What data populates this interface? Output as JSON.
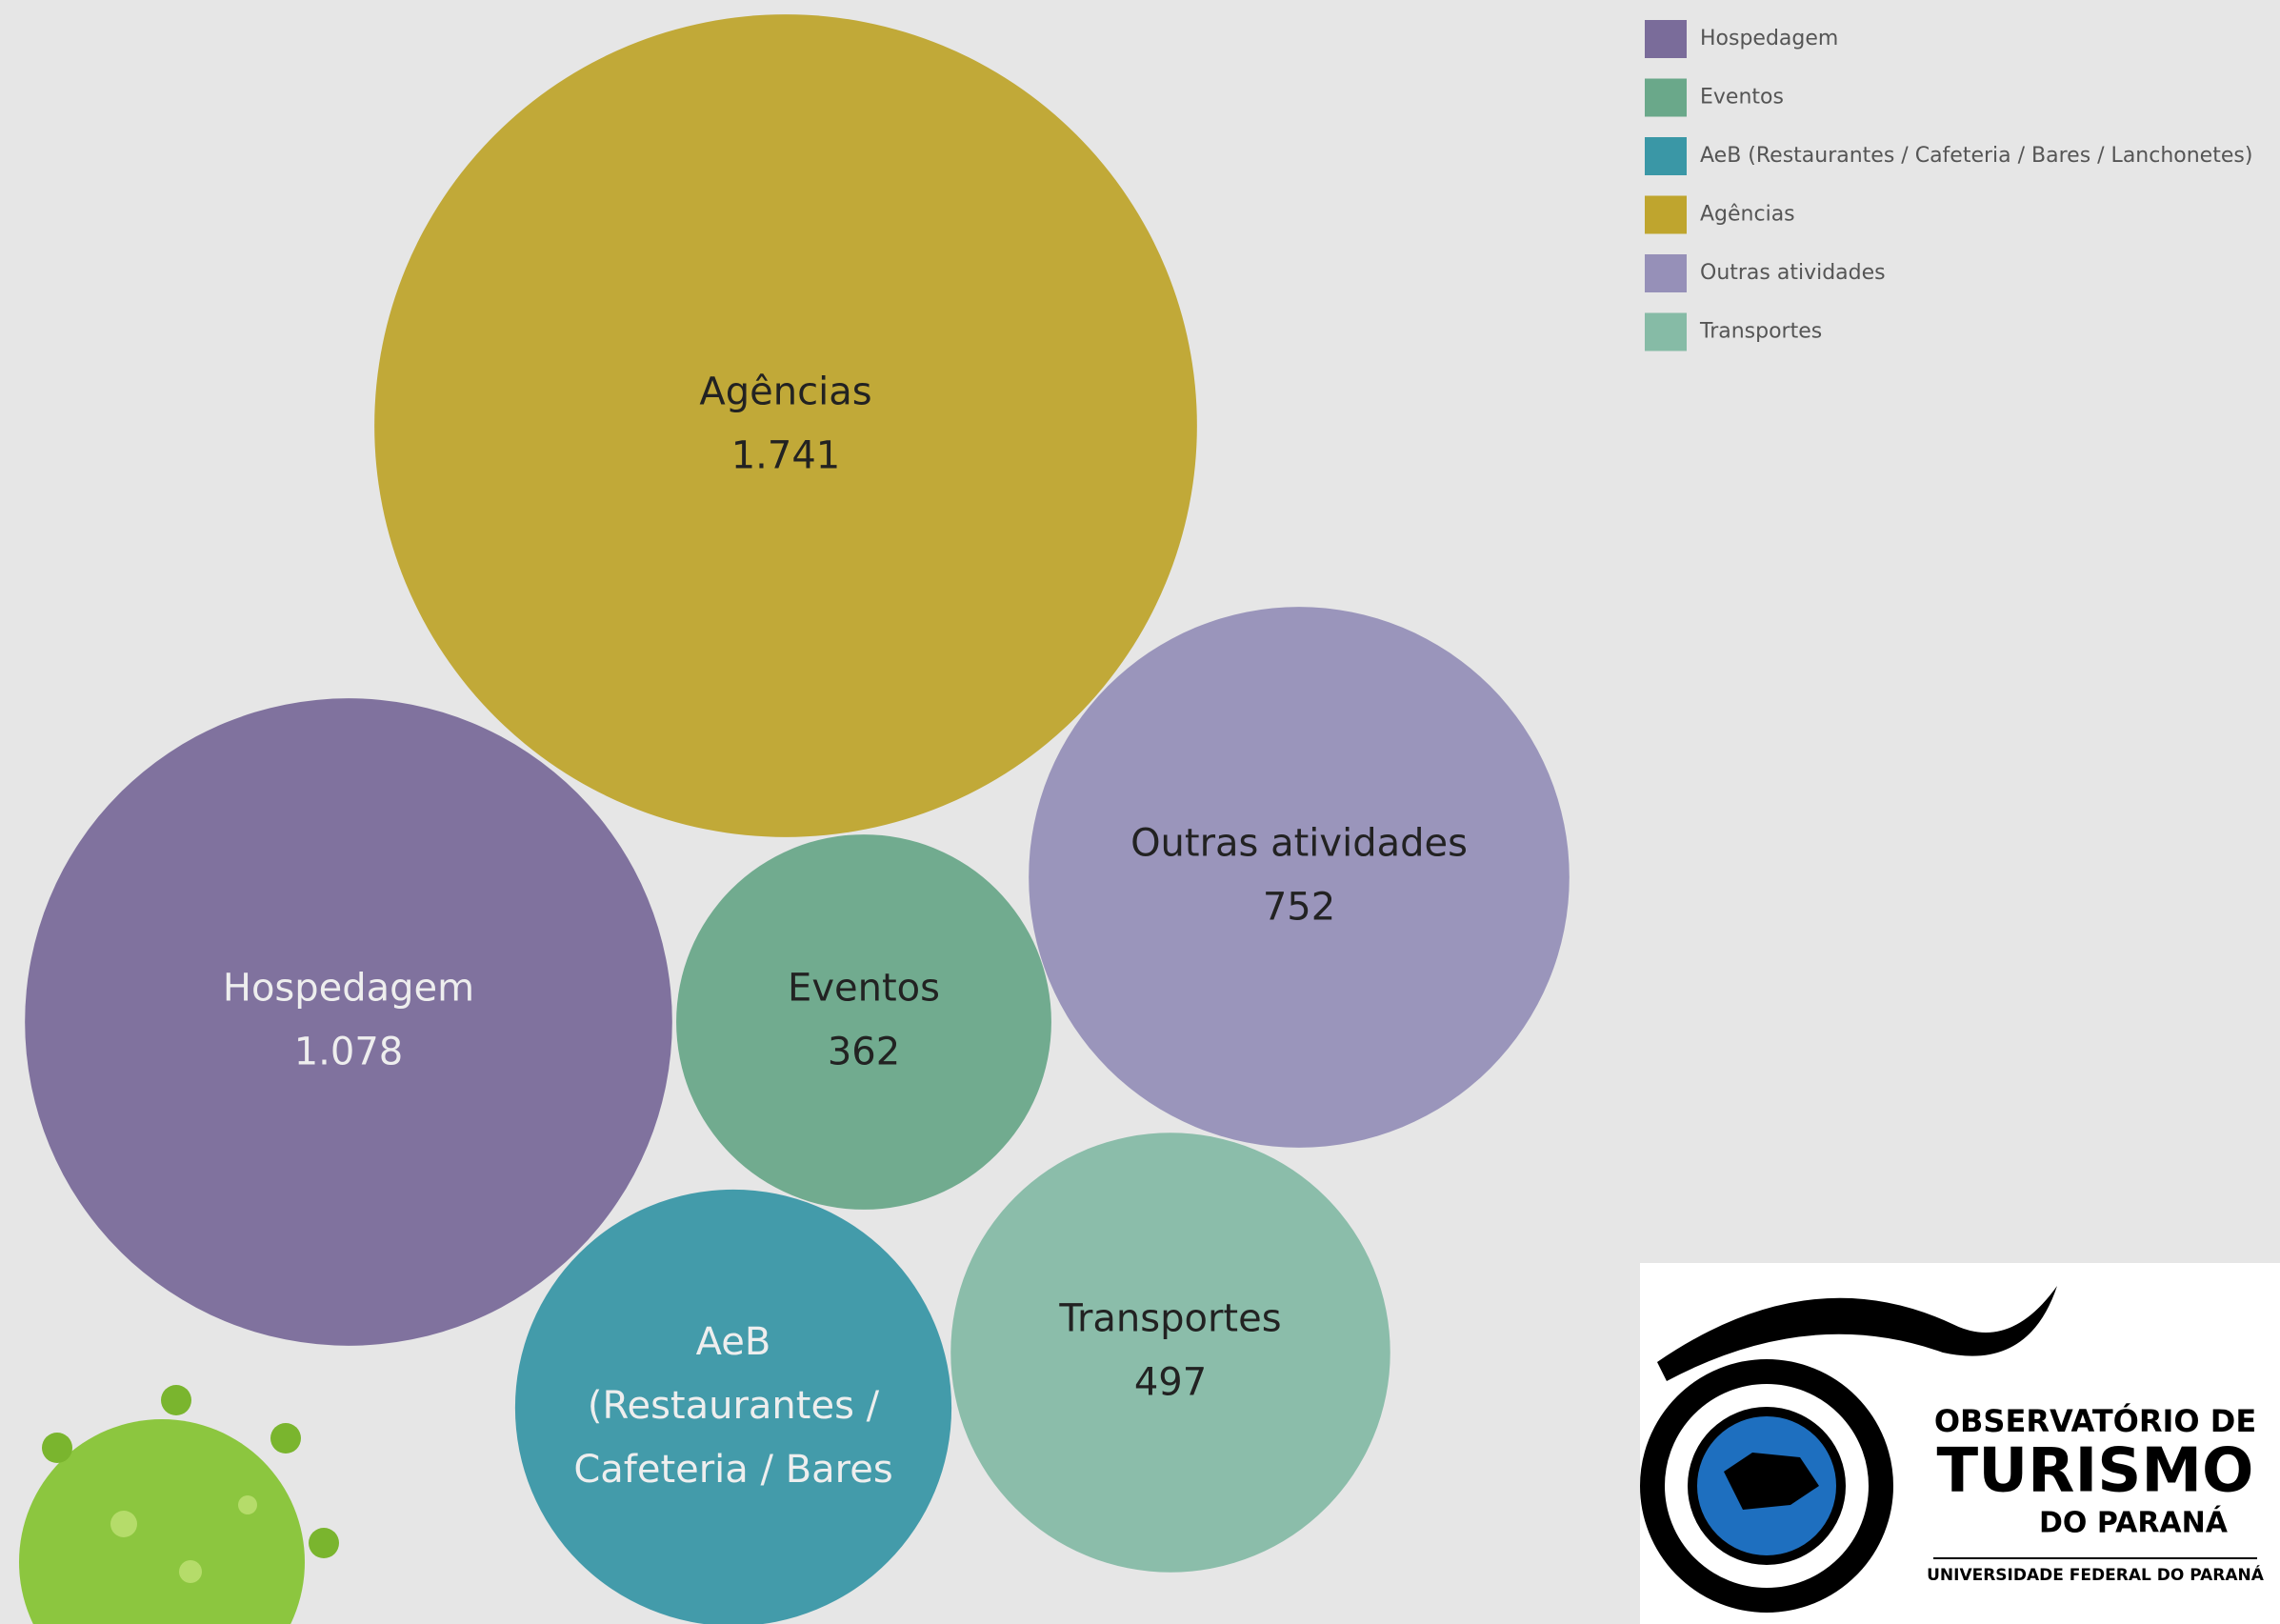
{
  "chart_data": {
    "type": "bubble",
    "categories": [
      "Hospedagem",
      "Eventos",
      "AeB (Restaurantes / Cafeteria / Bares / Lanchonetes)",
      "Agências",
      "Outras atividades",
      "Transportes"
    ],
    "bubble_labels": [
      [
        "Hospedagem"
      ],
      [
        "Eventos"
      ],
      [
        "AeB",
        "(Restaurantes /",
        "Cafeteria / Bares"
      ],
      [
        "Agências"
      ],
      [
        "Outras atividades"
      ],
      [
        "Transportes"
      ]
    ],
    "values": [
      1078,
      362,
      490,
      1741,
      752,
      497
    ],
    "value_labels": [
      "1.078",
      "362",
      null,
      "1.741",
      "752",
      "497"
    ],
    "colors": [
      "#7a6c9a",
      "#6aa88a",
      "#3a97a6",
      "#bfa52e",
      "#9690b8",
      "#86bba6"
    ],
    "legend": "top-right"
  },
  "logo": {
    "line1": "OBSERVATÓRIO DE",
    "line2": "TURISMO",
    "line3": "DO PARANÁ",
    "line4": "UNIVERSIDADE FEDERAL DO PARANÁ"
  }
}
